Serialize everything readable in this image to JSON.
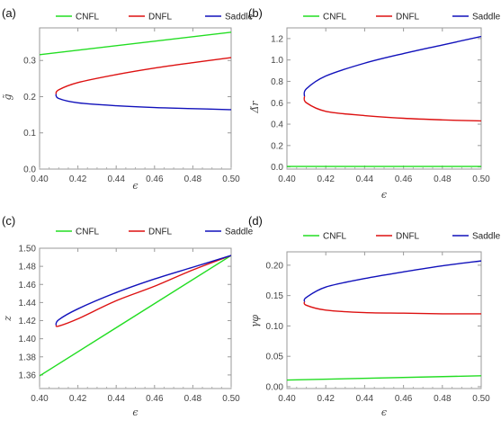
{
  "colors": {
    "CNFL": "#22dd22",
    "DNFL": "#dd1111",
    "Saddle": "#1111bb"
  },
  "chart_data": [
    {
      "type": "line",
      "panel_label": "(a)",
      "xlabel": "ϵ",
      "ylabel": "g̃",
      "xlim": [
        0.4,
        0.5
      ],
      "ylim": [
        0.0,
        0.39
      ],
      "xticks": [
        0.4,
        0.42,
        0.44,
        0.46,
        0.48,
        0.5
      ],
      "xtick_labels": [
        "0.40",
        "0.42",
        "0.44",
        "0.46",
        "0.48",
        "0.50"
      ],
      "yticks": [
        0.0,
        0.1,
        0.2,
        0.3
      ],
      "ytick_labels": [
        "0.0",
        "0.1",
        "0.2",
        "0.3"
      ],
      "legend_position": "top",
      "series": [
        {
          "name": "CNFL",
          "x": [
            0.4,
            0.5
          ],
          "y": [
            0.316,
            0.378
          ]
        },
        {
          "name": "DNFL",
          "x": [
            0.4085,
            0.41,
            0.42,
            0.44,
            0.46,
            0.48,
            0.5
          ],
          "y": [
            0.207,
            0.219,
            0.239,
            0.261,
            0.279,
            0.294,
            0.308
          ]
        },
        {
          "name": "Saddle",
          "x": [
            0.4085,
            0.41,
            0.42,
            0.44,
            0.46,
            0.48,
            0.5
          ],
          "y": [
            0.207,
            0.195,
            0.183,
            0.175,
            0.17,
            0.167,
            0.164
          ]
        }
      ]
    },
    {
      "type": "line",
      "panel_label": "(b)",
      "xlabel": "ϵ",
      "ylabel": "Δ̃r",
      "xlim": [
        0.4,
        0.5
      ],
      "ylim": [
        -0.02,
        1.3
      ],
      "xticks": [
        0.4,
        0.42,
        0.44,
        0.46,
        0.48,
        0.5
      ],
      "xtick_labels": [
        "0.40",
        "0.42",
        "0.44",
        "0.46",
        "0.48",
        "0.50"
      ],
      "yticks": [
        0.0,
        0.2,
        0.4,
        0.6,
        0.8,
        1.0,
        1.2
      ],
      "ytick_labels": [
        "0.0",
        "0.2",
        "0.4",
        "0.6",
        "0.8",
        "1.0",
        "1.2"
      ],
      "legend_position": "top",
      "series": [
        {
          "name": "CNFL",
          "x": [
            0.4,
            0.5
          ],
          "y": [
            0.005,
            0.005
          ]
        },
        {
          "name": "DNFL",
          "x": [
            0.409,
            0.41,
            0.42,
            0.44,
            0.46,
            0.48,
            0.5
          ],
          "y": [
            0.66,
            0.6,
            0.52,
            0.48,
            0.455,
            0.44,
            0.43
          ]
        },
        {
          "name": "Saddle",
          "x": [
            0.409,
            0.41,
            0.42,
            0.44,
            0.46,
            0.48,
            0.5
          ],
          "y": [
            0.66,
            0.73,
            0.85,
            0.97,
            1.06,
            1.14,
            1.22
          ]
        }
      ]
    },
    {
      "type": "line",
      "panel_label": "(c)",
      "xlabel": "ϵ",
      "ylabel": "z",
      "xlim": [
        0.4,
        0.5
      ],
      "ylim": [
        1.345,
        1.5
      ],
      "xticks": [
        0.4,
        0.42,
        0.44,
        0.46,
        0.48,
        0.5
      ],
      "xtick_labels": [
        "0.40",
        "0.42",
        "0.44",
        "0.46",
        "0.48",
        "0.50"
      ],
      "yticks": [
        1.36,
        1.38,
        1.4,
        1.42,
        1.44,
        1.46,
        1.48,
        1.5
      ],
      "ytick_labels": [
        "1.36",
        "1.38",
        "1.40",
        "1.42",
        "1.44",
        "1.46",
        "1.48",
        "1.50"
      ],
      "legend_position": "top",
      "series": [
        {
          "name": "CNFL",
          "x": [
            0.4,
            0.5
          ],
          "y": [
            1.359,
            1.492
          ]
        },
        {
          "name": "DNFL",
          "x": [
            0.4085,
            0.41,
            0.42,
            0.44,
            0.46,
            0.48,
            0.5
          ],
          "y": [
            1.415,
            1.414,
            1.422,
            1.442,
            1.458,
            1.476,
            1.492
          ]
        },
        {
          "name": "Saddle",
          "x": [
            0.4085,
            0.41,
            0.42,
            0.44,
            0.46,
            0.48,
            0.5
          ],
          "y": [
            1.415,
            1.421,
            1.433,
            1.451,
            1.466,
            1.479,
            1.492
          ]
        }
      ]
    },
    {
      "type": "line",
      "panel_label": "(d)",
      "xlabel": "ϵ",
      "ylabel": "γφ",
      "xlim": [
        0.4,
        0.5
      ],
      "ylim": [
        -0.003,
        0.222
      ],
      "xticks": [
        0.4,
        0.42,
        0.44,
        0.46,
        0.48,
        0.5
      ],
      "xtick_labels": [
        "0.40",
        "0.42",
        "0.44",
        "0.46",
        "0.48",
        "0.50"
      ],
      "yticks": [
        0.0,
        0.05,
        0.1,
        0.15,
        0.2
      ],
      "ytick_labels": [
        "0.00",
        "0.05",
        "0.10",
        "0.15",
        "0.20"
      ],
      "legend_position": "top",
      "series": [
        {
          "name": "CNFL",
          "x": [
            0.4,
            0.5
          ],
          "y": [
            0.011,
            0.018
          ]
        },
        {
          "name": "DNFL",
          "x": [
            0.409,
            0.41,
            0.42,
            0.44,
            0.46,
            0.48,
            0.5
          ],
          "y": [
            0.14,
            0.134,
            0.126,
            0.122,
            0.121,
            0.12,
            0.12
          ]
        },
        {
          "name": "Saddle",
          "x": [
            0.409,
            0.41,
            0.42,
            0.44,
            0.46,
            0.48,
            0.5
          ],
          "y": [
            0.14,
            0.147,
            0.164,
            0.178,
            0.189,
            0.199,
            0.207
          ]
        }
      ]
    }
  ]
}
